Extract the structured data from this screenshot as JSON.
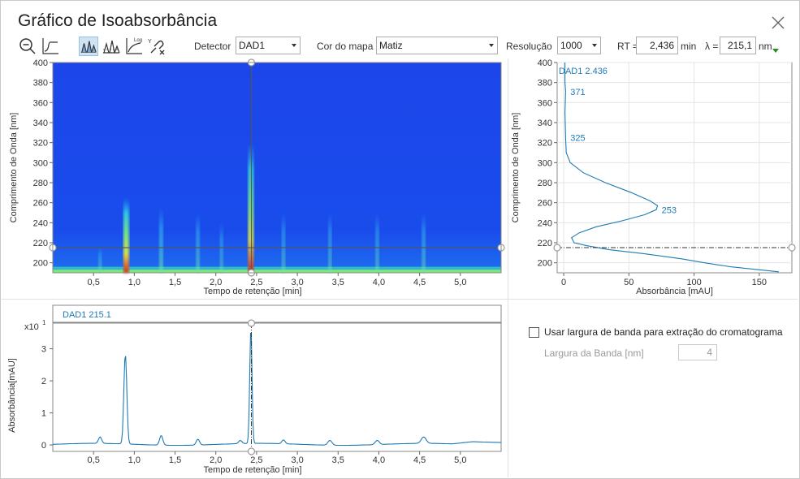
{
  "window": {
    "title": "Gráfico de Isoabsorbância"
  },
  "icons": {
    "close": "close-icon",
    "toolbar": [
      "zoom-out-icon",
      "baseline-icon",
      "peaks-icon",
      "peaks-compare-icon",
      "log-scale-icon",
      "unlink-axes-icon"
    ]
  },
  "toolbar": {
    "detector_label": "Detector",
    "detector_value": "DAD1",
    "colormap_label": "Cor do mapa",
    "colormap_value": "Matiz",
    "resolution_label": "Resolução",
    "resolution_value": "1000",
    "rt_label": "RT =",
    "rt_value": "2,436",
    "rt_unit": "min",
    "lambda_label": "λ =",
    "lambda_value": "215,1",
    "lambda_unit": "nm"
  },
  "options": {
    "bandwidth_checkbox_label": "Usar largura de banda para extração do cromatograma",
    "bandwidth_checked": false,
    "bandwidth_label": "Largura da Banda [nm]",
    "bandwidth_value": "4"
  },
  "colors": {
    "map_background": "#1a3fe6",
    "trace": "#1d7ab5",
    "cursor": "#444444"
  },
  "chart_data": [
    {
      "type": "heatmap",
      "xlabel": "Tempo de retenção [min]",
      "ylabel": "Comprimento de Onda [nm]",
      "xlim": [
        0,
        5.5
      ],
      "ylim": [
        190,
        400
      ],
      "xticks": [
        "0,5",
        "1,0",
        "1,5",
        "2,0",
        "2,5",
        "3,0",
        "3,5",
        "4,0",
        "4,5",
        "5,0"
      ],
      "xtick_values": [
        0.5,
        1.0,
        1.5,
        2.0,
        2.5,
        3.0,
        3.5,
        4.0,
        4.5,
        5.0
      ],
      "yticks": [
        200,
        220,
        240,
        260,
        280,
        300,
        320,
        340,
        360,
        380,
        400
      ],
      "cursor_rt": 2.436,
      "cursor_lambda": 215.1,
      "bands": [
        {
          "rt": 0.58,
          "top": 215,
          "strength": 0.3
        },
        {
          "rt": 0.9,
          "top": 265,
          "strength": 1.0
        },
        {
          "rt": 1.33,
          "top": 255,
          "strength": 0.5
        },
        {
          "rt": 1.78,
          "top": 250,
          "strength": 0.4
        },
        {
          "rt": 2.07,
          "top": 240,
          "strength": 0.3
        },
        {
          "rt": 2.43,
          "top": 320,
          "strength": 1.0
        },
        {
          "rt": 2.83,
          "top": 250,
          "strength": 0.35
        },
        {
          "rt": 3.4,
          "top": 250,
          "strength": 0.35
        },
        {
          "rt": 3.98,
          "top": 250,
          "strength": 0.35
        },
        {
          "rt": 4.55,
          "top": 250,
          "strength": 0.4
        }
      ]
    },
    {
      "type": "line",
      "series_label": "DAD1 2.436",
      "xlabel": "Absorbância [mAU]",
      "ylabel": "Comprimento de Onda [nm]",
      "xlim": [
        -5,
        175
      ],
      "ylim": [
        190,
        400
      ],
      "xticks": [
        0,
        50,
        100,
        150
      ],
      "yticks": [
        200,
        220,
        240,
        260,
        280,
        300,
        320,
        340,
        360,
        380,
        400
      ],
      "annotations": [
        {
          "text": "371",
          "wavelength": 371,
          "absorbance": 2
        },
        {
          "text": "325",
          "wavelength": 325,
          "absorbance": 2
        },
        {
          "text": "253",
          "wavelength": 253,
          "absorbance": 72
        }
      ],
      "cursor_lambda": 215.1,
      "points": [
        [
          1,
          400
        ],
        [
          1,
          380
        ],
        [
          1.5,
          371
        ],
        [
          1,
          350
        ],
        [
          1.5,
          325
        ],
        [
          2,
          310
        ],
        [
          5,
          300
        ],
        [
          15,
          290
        ],
        [
          32,
          280
        ],
        [
          52,
          270
        ],
        [
          66,
          262
        ],
        [
          72,
          257
        ],
        [
          71,
          253
        ],
        [
          62,
          248
        ],
        [
          45,
          242
        ],
        [
          25,
          236
        ],
        [
          12,
          230
        ],
        [
          6,
          225
        ],
        [
          8,
          220
        ],
        [
          18,
          217
        ],
        [
          35,
          213
        ],
        [
          62,
          209
        ],
        [
          90,
          204
        ],
        [
          108,
          200
        ],
        [
          128,
          196
        ],
        [
          150,
          193
        ],
        [
          165,
          191
        ]
      ]
    },
    {
      "type": "line",
      "series_label": "DAD1 215.1",
      "xlabel": "Tempo de retenção [min]",
      "ylabel": "Absorbância[mAU]",
      "y_multiplier": "x10",
      "y_multiplier_exp": "1",
      "xlim": [
        0,
        5.5
      ],
      "ylim": [
        -0.2,
        3.8
      ],
      "xticks": [
        "0,5",
        "1,0",
        "1,5",
        "2,0",
        "2,5",
        "3,0",
        "3,5",
        "4,0",
        "4,5",
        "5,0"
      ],
      "xtick_values": [
        0.5,
        1.0,
        1.5,
        2.0,
        2.5,
        3.0,
        3.5,
        4.0,
        4.5,
        5.0
      ],
      "yticks": [
        0,
        1,
        2,
        3
      ],
      "cursor_rt": 2.436,
      "peaks": [
        {
          "rt": 0.58,
          "height": 0.2,
          "width": 0.02
        },
        {
          "rt": 0.89,
          "height": 2.8,
          "width": 0.018
        },
        {
          "rt": 1.33,
          "height": 0.3,
          "width": 0.02
        },
        {
          "rt": 1.78,
          "height": 0.18,
          "width": 0.02
        },
        {
          "rt": 2.3,
          "height": 0.1,
          "width": 0.02
        },
        {
          "rt": 2.43,
          "height": 3.6,
          "width": 0.014
        },
        {
          "rt": 2.83,
          "height": 0.12,
          "width": 0.02
        },
        {
          "rt": 3.4,
          "height": 0.15,
          "width": 0.025
        },
        {
          "rt": 3.98,
          "height": 0.13,
          "width": 0.025
        },
        {
          "rt": 4.55,
          "height": 0.2,
          "width": 0.03
        }
      ]
    }
  ]
}
